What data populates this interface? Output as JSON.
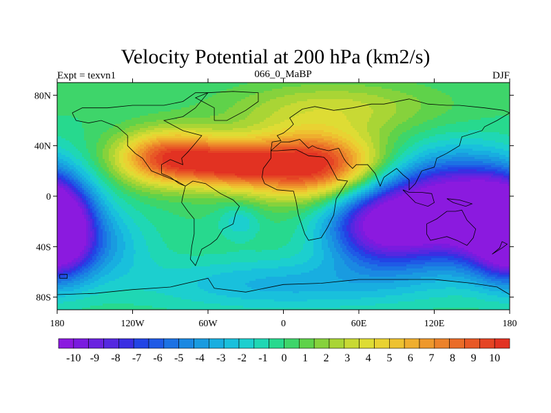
{
  "title": "Velocity Potential at 200 hPa (km2/s)",
  "left_label": "Expt = texvn1",
  "center_label": "066_0_MaBP",
  "right_label": "DJF",
  "lat_ticks": [
    {
      "lat": 80,
      "label": "80N"
    },
    {
      "lat": 40,
      "label": "40N"
    },
    {
      "lat": 0,
      "label": "0"
    },
    {
      "lat": -40,
      "label": "40S"
    },
    {
      "lat": -80,
      "label": "80S"
    }
  ],
  "lon_ticks": [
    {
      "lon": -180,
      "label": "180"
    },
    {
      "lon": -120,
      "label": "120W"
    },
    {
      "lon": -60,
      "label": "60W"
    },
    {
      "lon": 0,
      "label": "0"
    },
    {
      "lon": 60,
      "label": "60E"
    },
    {
      "lon": 120,
      "label": "120E"
    },
    {
      "lon": 180,
      "label": "180"
    }
  ],
  "colorbar": {
    "labels": [
      "-10",
      "-9",
      "-8",
      "-7",
      "-6",
      "-5",
      "-4",
      "-3",
      "-2",
      "-1",
      "0",
      "1",
      "2",
      "3",
      "4",
      "5",
      "6",
      "7",
      "8",
      "9",
      "10"
    ],
    "colors": [
      "#8b1adf",
      "#7a1bdf",
      "#6a22e0",
      "#5528e0",
      "#3a2ee2",
      "#2244e5",
      "#1f5ae6",
      "#1c72e4",
      "#1a88e2",
      "#199be0",
      "#18aee0",
      "#19c0dc",
      "#1ccfcf",
      "#1fd7b4",
      "#27d98e",
      "#3ed56a",
      "#5fd24a",
      "#86d23c",
      "#a9d535",
      "#c8d934",
      "#dedc34",
      "#e9d232",
      "#eec230",
      "#efae2e",
      "#ee982c",
      "#ec822a",
      "#ea6c28",
      "#e85826",
      "#e54424",
      "#e23222"
    ],
    "vmin": -10.5,
    "vmax": 10.5
  },
  "field_centers": [
    {
      "lon": 20,
      "lat": 25,
      "amp": 11.0,
      "slon": 40,
      "slat": 18
    },
    {
      "lon": -90,
      "lat": 30,
      "amp": 9.5,
      "slon": 30,
      "slat": 15
    },
    {
      "lon": -40,
      "lat": 25,
      "amp": 6.0,
      "slon": 25,
      "slat": 12
    },
    {
      "lon": 130,
      "lat": -10,
      "amp": -11.5,
      "slon": 40,
      "slat": 28
    },
    {
      "lon": 75,
      "lat": -25,
      "amp": -8.0,
      "slon": 30,
      "slat": 22
    },
    {
      "lon": 170,
      "lat": -20,
      "amp": -6.0,
      "slon": 25,
      "slat": 25
    },
    {
      "lon": -180,
      "lat": -30,
      "amp": -8.0,
      "slon": 18,
      "slat": 25
    },
    {
      "lon": -150,
      "lat": -40,
      "amp": -3.0,
      "slon": 30,
      "slat": 20
    },
    {
      "lon": -35,
      "lat": -20,
      "amp": -2.0,
      "slon": 12,
      "slat": 10
    },
    {
      "lon": 0,
      "lat": -70,
      "amp": -3.0,
      "slon": 80,
      "slat": 15
    },
    {
      "lon": 40,
      "lat": 70,
      "amp": 3.0,
      "slon": 60,
      "slat": 15
    }
  ]
}
